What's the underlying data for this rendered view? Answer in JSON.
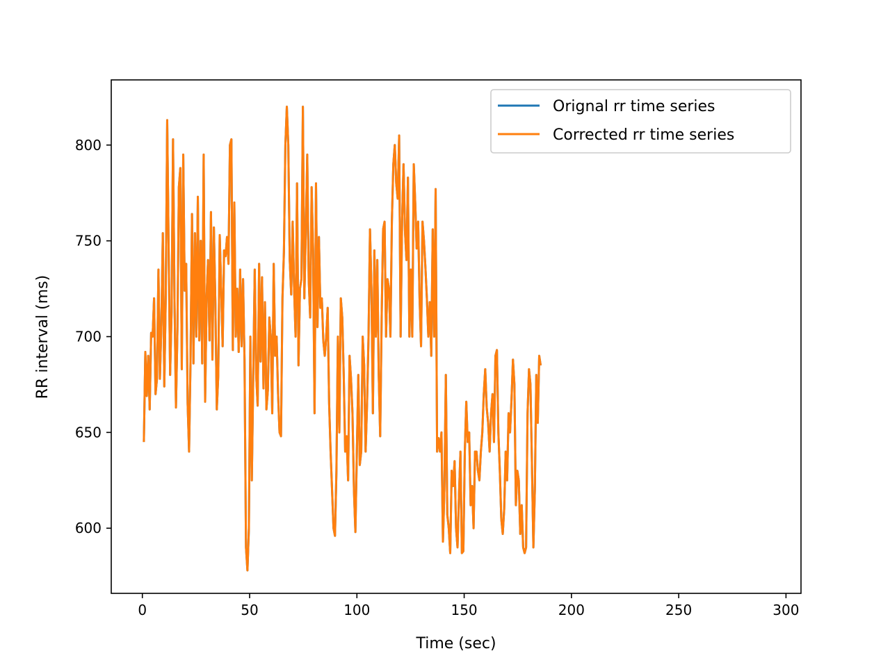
{
  "chart_data": {
    "type": "line",
    "title": "",
    "xlabel": "Time (sec)",
    "ylabel": "RR interval (ms)",
    "xlim": [
      -14.5,
      307
    ],
    "ylim": [
      566,
      834
    ],
    "xticks": [
      0,
      50,
      100,
      150,
      200,
      250,
      300
    ],
    "yticks": [
      600,
      650,
      700,
      750,
      800
    ],
    "grid": false,
    "legend_position": "upper right",
    "colors": {
      "original": "#1f77b4",
      "corrected": "#ff7f0e"
    },
    "x_spacing_sec": 0.68,
    "keypoints_y": [
      645,
      692,
      669,
      690,
      662,
      702,
      700,
      720,
      670,
      678,
      735,
      678,
      706,
      754,
      674,
      720,
      813,
      745,
      680,
      713,
      803,
      720,
      663,
      703,
      778,
      788,
      683,
      795,
      724,
      738,
      665,
      640,
      688,
      764,
      686,
      754,
      700,
      773,
      698,
      750,
      686,
      795,
      666,
      720,
      740,
      698,
      765,
      688,
      757,
      718,
      662,
      680,
      753,
      725,
      695,
      745,
      742,
      752,
      738,
      800,
      803,
      693,
      770,
      700,
      725,
      692,
      735,
      695,
      730,
      688,
      590,
      578,
      600,
      700,
      625,
      680,
      735,
      680,
      664,
      738,
      687,
      731,
      673,
      718,
      662,
      672,
      710,
      700,
      660,
      738,
      690,
      700,
      670,
      650,
      648,
      720,
      744,
      800,
      820,
      800,
      740,
      722,
      760,
      725,
      700,
      780,
      685,
      725,
      730,
      820,
      720,
      755,
      795,
      730,
      710,
      778,
      745,
      660,
      780,
      705,
      752,
      715,
      720,
      698,
      690,
      700,
      715,
      665,
      640,
      620,
      600,
      596,
      630,
      700,
      650,
      720,
      710,
      680,
      640,
      648,
      625,
      690,
      678,
      660,
      620,
      598,
      640,
      680,
      633,
      640,
      700,
      685,
      640,
      665,
      700,
      756,
      725,
      660,
      745,
      700,
      740,
      680,
      648,
      710,
      756,
      760,
      700,
      730,
      725,
      700,
      760,
      790,
      800,
      780,
      772,
      805,
      700,
      760,
      790,
      755,
      740,
      783,
      700,
      735,
      700,
      790,
      770,
      746,
      760,
      720,
      695,
      760,
      750,
      736,
      720,
      700,
      718,
      690,
      756,
      700,
      777,
      640,
      647,
      640,
      650,
      593,
      620,
      680,
      607,
      600,
      587,
      630,
      622,
      635,
      600,
      590,
      617,
      640,
      587,
      588,
      640,
      666,
      645,
      650,
      612,
      622,
      600,
      640,
      640,
      630,
      625,
      640,
      650,
      670,
      683,
      663,
      655,
      640,
      660,
      670,
      645,
      690,
      693,
      650,
      630,
      605,
      597,
      610,
      640,
      625,
      660,
      650,
      667,
      688,
      675,
      612,
      630,
      625,
      597,
      612,
      590,
      587,
      590,
      660,
      683,
      675,
      634,
      590,
      620,
      680,
      655,
      690,
      685
    ]
  },
  "legend": {
    "items": [
      {
        "label": "Orignal rr time series"
      },
      {
        "label": "Corrected rr time series"
      }
    ]
  }
}
